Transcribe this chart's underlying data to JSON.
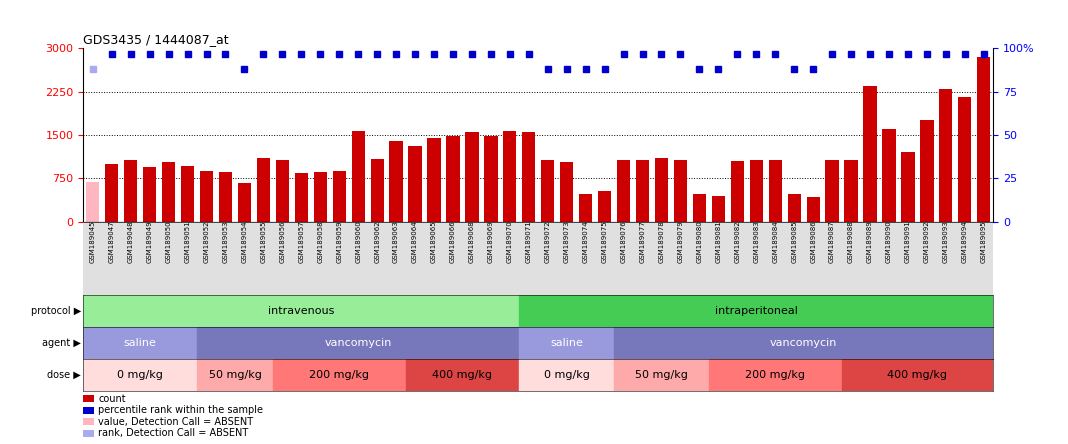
{
  "title": "GDS3435 / 1444087_at",
  "samples": [
    "GSM189045",
    "GSM189047",
    "GSM189048",
    "GSM189049",
    "GSM189050",
    "GSM189051",
    "GSM189052",
    "GSM189053",
    "GSM189054",
    "GSM189055",
    "GSM189056",
    "GSM189057",
    "GSM189058",
    "GSM189059",
    "GSM189060",
    "GSM189062",
    "GSM189063",
    "GSM189064",
    "GSM189065",
    "GSM189066",
    "GSM189068",
    "GSM189069",
    "GSM189070",
    "GSM189071",
    "GSM189072",
    "GSM189073",
    "GSM189074",
    "GSM189075",
    "GSM189076",
    "GSM189077",
    "GSM189078",
    "GSM189079",
    "GSM189080",
    "GSM189081",
    "GSM189082",
    "GSM189083",
    "GSM189084",
    "GSM189085",
    "GSM189086",
    "GSM189087",
    "GSM189088",
    "GSM189089",
    "GSM189090",
    "GSM189091",
    "GSM189092",
    "GSM189093",
    "GSM189094",
    "GSM189095"
  ],
  "bar_values": [
    680,
    1000,
    1060,
    950,
    1030,
    965,
    880,
    850,
    660,
    1100,
    1075,
    840,
    855,
    870,
    1570,
    1080,
    1395,
    1310,
    1455,
    1480,
    1545,
    1490,
    1575,
    1545,
    1065,
    1025,
    470,
    535,
    1065,
    1075,
    1105,
    1065,
    480,
    450,
    1055,
    1065,
    1065,
    480,
    420,
    1075,
    1065,
    2340,
    1605,
    1210,
    1765,
    2290,
    2160,
    2850
  ],
  "absent_flags": [
    true,
    false,
    false,
    false,
    false,
    false,
    false,
    false,
    false,
    false,
    false,
    false,
    false,
    false,
    false,
    false,
    false,
    false,
    false,
    false,
    false,
    false,
    false,
    false,
    false,
    false,
    false,
    false,
    false,
    false,
    false,
    false,
    false,
    false,
    false,
    false,
    false,
    false,
    false,
    false,
    false,
    false,
    false,
    false,
    false,
    false,
    false,
    false
  ],
  "percentile_values": [
    88,
    97,
    97,
    97,
    97,
    97,
    97,
    97,
    88,
    97,
    97,
    97,
    97,
    97,
    97,
    97,
    97,
    97,
    97,
    97,
    97,
    97,
    97,
    97,
    88,
    88,
    88,
    88,
    97,
    97,
    97,
    97,
    88,
    88,
    97,
    97,
    97,
    88,
    88,
    97,
    97,
    97,
    97,
    97,
    97,
    97,
    97,
    97
  ],
  "absent_pct_flags": [
    true,
    false,
    false,
    false,
    false,
    false,
    false,
    false,
    false,
    false,
    false,
    false,
    false,
    false,
    false,
    false,
    false,
    false,
    false,
    false,
    false,
    false,
    false,
    false,
    false,
    false,
    false,
    false,
    false,
    false,
    false,
    false,
    false,
    false,
    false,
    false,
    false,
    false,
    false,
    false,
    false,
    false,
    false,
    false,
    false,
    false,
    false,
    false
  ],
  "bar_color_present": "#cc0000",
  "bar_color_absent": "#ffb6c1",
  "dot_color_present": "#0000cc",
  "dot_color_absent": "#aaaaee",
  "ylim_left": [
    0,
    3000
  ],
  "ylim_right": [
    0,
    100
  ],
  "yticks_left": [
    0,
    750,
    1500,
    2250,
    3000
  ],
  "yticks_right": [
    0,
    25,
    50,
    75,
    100
  ],
  "grid_values": [
    750,
    1500,
    2250
  ],
  "protocol_groups": [
    {
      "label": "intravenous",
      "start": 0,
      "end": 23,
      "color": "#98ee98"
    },
    {
      "label": "intraperitoneal",
      "start": 23,
      "end": 48,
      "color": "#44cc55"
    }
  ],
  "agent_groups": [
    {
      "label": "saline",
      "start": 0,
      "end": 6,
      "color": "#9999dd"
    },
    {
      "label": "vancomycin",
      "start": 6,
      "end": 23,
      "color": "#7777bb"
    },
    {
      "label": "saline",
      "start": 23,
      "end": 28,
      "color": "#9999dd"
    },
    {
      "label": "vancomycin",
      "start": 28,
      "end": 48,
      "color": "#7777bb"
    }
  ],
  "dose_groups": [
    {
      "label": "0 mg/kg",
      "start": 0,
      "end": 6,
      "color": "#ffdddd"
    },
    {
      "label": "50 mg/kg",
      "start": 6,
      "end": 10,
      "color": "#ffaaaa"
    },
    {
      "label": "200 mg/kg",
      "start": 10,
      "end": 17,
      "color": "#ff7777"
    },
    {
      "label": "400 mg/kg",
      "start": 17,
      "end": 23,
      "color": "#dd4444"
    },
    {
      "label": "0 mg/kg",
      "start": 23,
      "end": 28,
      "color": "#ffdddd"
    },
    {
      "label": "50 mg/kg",
      "start": 28,
      "end": 33,
      "color": "#ffaaaa"
    },
    {
      "label": "200 mg/kg",
      "start": 33,
      "end": 40,
      "color": "#ff7777"
    },
    {
      "label": "400 mg/kg",
      "start": 40,
      "end": 48,
      "color": "#dd4444"
    }
  ],
  "legend_items": [
    {
      "label": "count",
      "color": "#cc0000"
    },
    {
      "label": "percentile rank within the sample",
      "color": "#0000cc"
    },
    {
      "label": "value, Detection Call = ABSENT",
      "color": "#ffb6c1"
    },
    {
      "label": "rank, Detection Call = ABSENT",
      "color": "#aaaaee"
    }
  ]
}
